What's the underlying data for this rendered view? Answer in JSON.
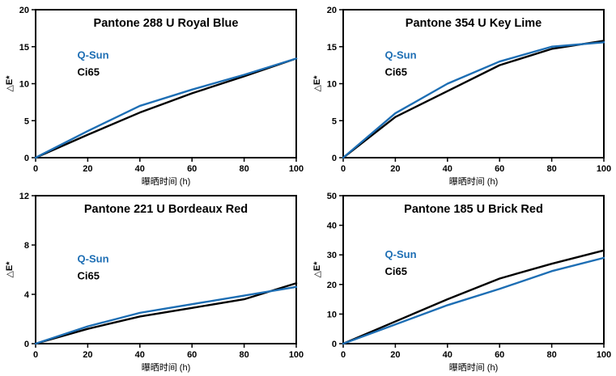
{
  "colors": {
    "qsun_blue": "#1d6eb4",
    "ci65_black": "#000000",
    "axis": "#000000",
    "background": "#ffffff"
  },
  "chart_data": [
    {
      "type": "line",
      "title": "Pantone 288 U Royal Blue",
      "xlabel": "曝晒时间 (h)",
      "ylabel": "△E*",
      "xlim": [
        0,
        100
      ],
      "ylim": [
        0,
        20
      ],
      "xticks": [
        0,
        20,
        40,
        60,
        80,
        100
      ],
      "yticks": [
        0,
        5,
        10,
        15,
        20
      ],
      "grid": false,
      "legend_position": "inside-left",
      "x": [
        0,
        20,
        40,
        60,
        80,
        100
      ],
      "series": [
        {
          "name": "Q-Sun",
          "color": "#1d6eb4",
          "values": [
            0,
            3.6,
            7.0,
            9.2,
            11.2,
            13.4
          ]
        },
        {
          "name": "Ci65",
          "color": "#000000",
          "values": [
            0,
            3.1,
            6.1,
            8.7,
            11.0,
            13.4
          ]
        }
      ]
    },
    {
      "type": "line",
      "title": "Pantone 354 U Key Lime",
      "xlabel": "曝晒时间 (h)",
      "ylabel": "△E*",
      "xlim": [
        0,
        100
      ],
      "ylim": [
        0,
        20
      ],
      "xticks": [
        0,
        20,
        40,
        60,
        80,
        100
      ],
      "yticks": [
        0,
        5,
        10,
        15,
        20
      ],
      "grid": false,
      "legend_position": "inside-left",
      "x": [
        0,
        20,
        40,
        60,
        80,
        100
      ],
      "series": [
        {
          "name": "Q-Sun",
          "color": "#1d6eb4",
          "values": [
            0,
            6.0,
            10.0,
            13.0,
            15.0,
            15.6
          ]
        },
        {
          "name": "Ci65",
          "color": "#000000",
          "values": [
            0,
            5.5,
            9.0,
            12.5,
            14.7,
            15.8
          ]
        }
      ]
    },
    {
      "type": "line",
      "title": "Pantone 221 U Bordeaux Red",
      "xlabel": "曝晒时间 (h)",
      "ylabel": "△E*",
      "xlim": [
        0,
        100
      ],
      "ylim": [
        0,
        12
      ],
      "xticks": [
        0,
        20,
        40,
        60,
        80,
        100
      ],
      "yticks": [
        0,
        4,
        8,
        12
      ],
      "grid": false,
      "legend_position": "inside-left",
      "x": [
        0,
        20,
        40,
        60,
        80,
        100
      ],
      "series": [
        {
          "name": "Q-Sun",
          "color": "#1d6eb4",
          "values": [
            0,
            1.4,
            2.5,
            3.2,
            3.9,
            4.6
          ]
        },
        {
          "name": "Ci65",
          "color": "#000000",
          "values": [
            0,
            1.2,
            2.2,
            2.9,
            3.6,
            4.9
          ]
        }
      ]
    },
    {
      "type": "line",
      "title": "Pantone 185 U Brick Red",
      "xlabel": "曝晒时间 (h)",
      "ylabel": "△E*",
      "xlim": [
        0,
        100
      ],
      "ylim": [
        0,
        50
      ],
      "xticks": [
        0,
        20,
        40,
        60,
        80,
        100
      ],
      "yticks": [
        0,
        10,
        20,
        30,
        40,
        50
      ],
      "grid": false,
      "legend_position": "inside-left",
      "x": [
        0,
        20,
        40,
        60,
        80,
        100
      ],
      "series": [
        {
          "name": "Q-Sun",
          "color": "#1d6eb4",
          "values": [
            0,
            6.5,
            13.0,
            18.5,
            24.5,
            29.0
          ]
        },
        {
          "name": "Ci65",
          "color": "#000000",
          "values": [
            0,
            7.5,
            15.0,
            22.0,
            27.0,
            31.5
          ]
        }
      ]
    }
  ]
}
